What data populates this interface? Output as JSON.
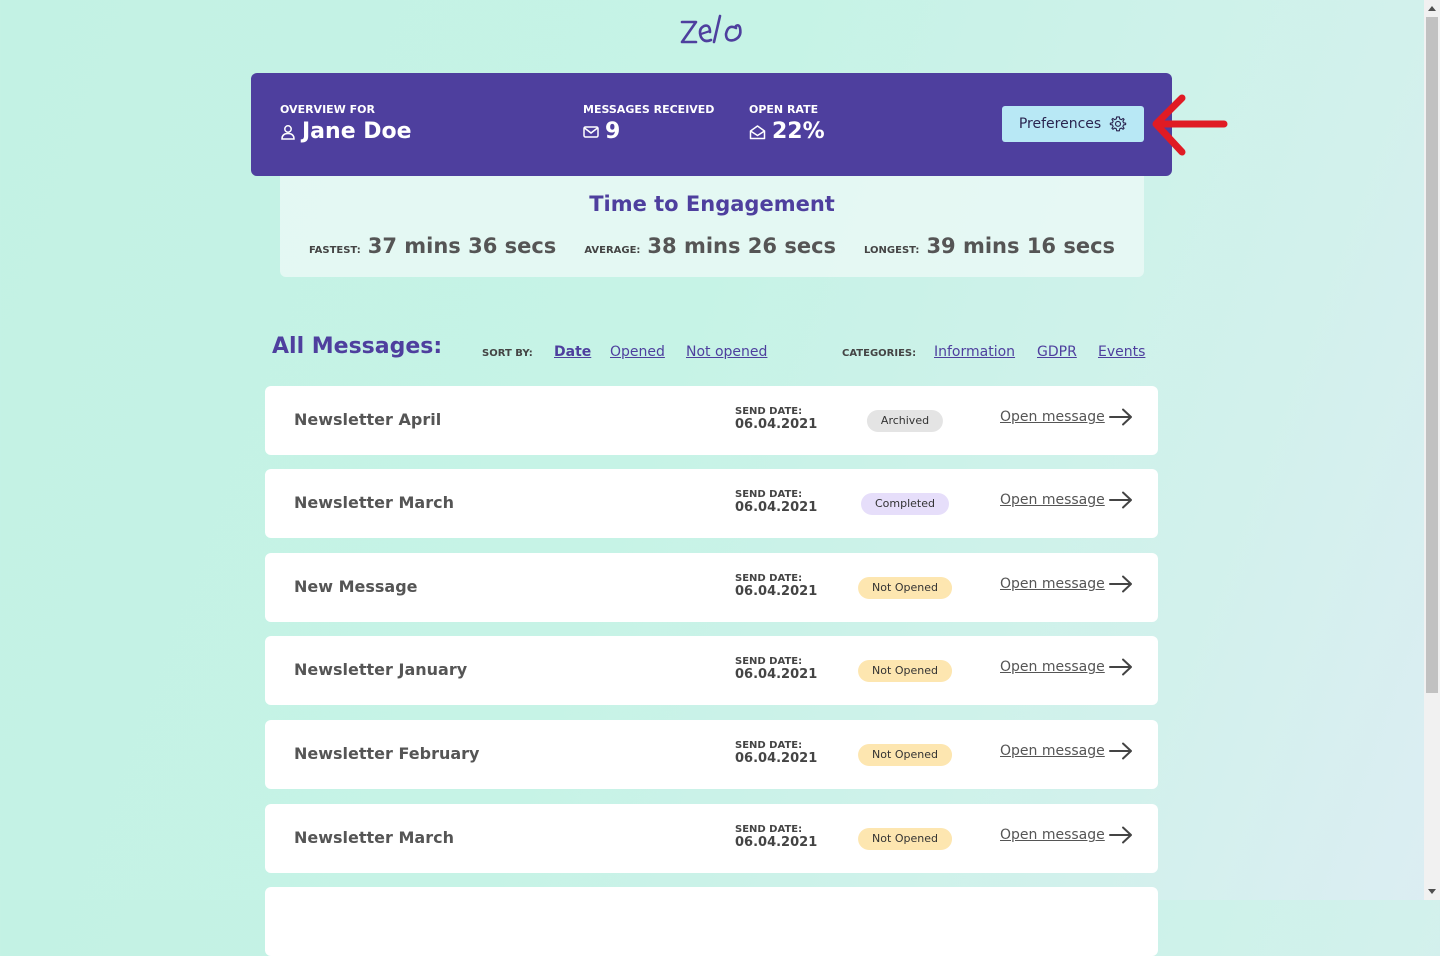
{
  "brand": {
    "logo_text": "zelo",
    "color": "#4e3f9e"
  },
  "overview": {
    "for_label": "OVERVIEW FOR",
    "user_name": "Jane Doe",
    "messages_label": "MESSAGES RECEIVED",
    "messages_value": "9",
    "open_rate_label": "OPEN RATE",
    "open_rate_value": "22%",
    "preferences_label": "Preferences"
  },
  "engagement": {
    "title": "Time to Engagement",
    "fastest_label": "FASTEST:",
    "fastest_value": "37 mins 36 secs",
    "average_label": "AVERAGE:",
    "average_value": "38 mins 26 secs",
    "longest_label": "LONGEST:",
    "longest_value": "39 mins 16 secs"
  },
  "messages": {
    "title": "All Messages:",
    "sort_label": "SORT BY:",
    "sort_options": [
      "Date",
      "Opened",
      "Not opened"
    ],
    "categories_label": "CATEGORIES:",
    "categories": [
      "Information",
      "GDPR",
      "Events"
    ],
    "send_date_label": "SEND DATE:",
    "open_label": "Open message",
    "items": [
      {
        "name": "Newsletter April",
        "date": "06.04.2021",
        "status": "Archived",
        "status_color": "#e4e4e4"
      },
      {
        "name": "Newsletter March",
        "date": "06.04.2021",
        "status": "Completed",
        "status_color": "#e6defa"
      },
      {
        "name": "New Message",
        "date": "06.04.2021",
        "status": "Not Opened",
        "status_color": "#fde6b0"
      },
      {
        "name": "Newsletter January",
        "date": "06.04.2021",
        "status": "Not Opened",
        "status_color": "#fde6b0"
      },
      {
        "name": "Newsletter February",
        "date": "06.04.2021",
        "status": "Not Opened",
        "status_color": "#fde6b0"
      },
      {
        "name": "Newsletter March",
        "date": "06.04.2021",
        "status": "Not Opened",
        "status_color": "#fde6b0"
      }
    ]
  }
}
